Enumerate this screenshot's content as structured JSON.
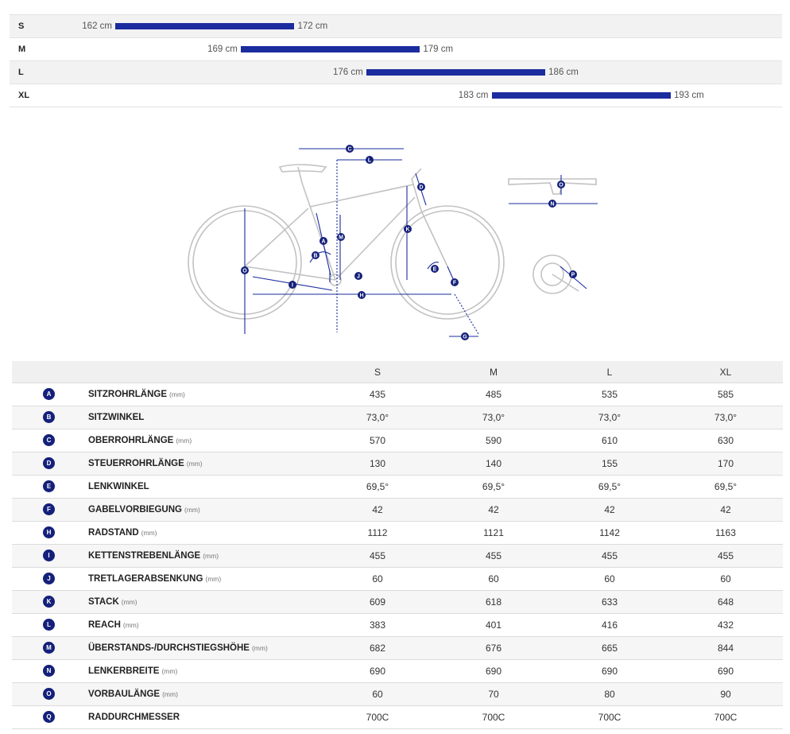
{
  "size_ranges": [
    {
      "size": "S",
      "min": "162 cm",
      "max": "172 cm",
      "min_cm": 162,
      "max_cm": 172
    },
    {
      "size": "M",
      "min": "169 cm",
      "max": "179 cm",
      "min_cm": 169,
      "max_cm": 179
    },
    {
      "size": "L",
      "min": "176 cm",
      "max": "186 cm",
      "min_cm": 176,
      "max_cm": 186
    },
    {
      "size": "XL",
      "min": "183 cm",
      "max": "193 cm",
      "min_cm": 183,
      "max_cm": 193
    }
  ],
  "diagram_labels": [
    "A",
    "B",
    "C",
    "D",
    "E",
    "F",
    "G",
    "H",
    "I",
    "J",
    "K",
    "L",
    "M",
    "N",
    "O",
    "P"
  ],
  "colors": {
    "accent": "#1a2c9e",
    "badge": "#14207a",
    "frame": "#bdbdbd"
  },
  "table": {
    "size_headers": [
      "S",
      "M",
      "L",
      "XL"
    ],
    "rows": [
      {
        "badge": "A",
        "name": "SITZROHRLÄNGE",
        "unit": "(mm)",
        "values": [
          "435",
          "485",
          "535",
          "585"
        ]
      },
      {
        "badge": "B",
        "name": "SITZWINKEL",
        "unit": "",
        "values": [
          "73,0°",
          "73,0°",
          "73,0°",
          "73,0°"
        ]
      },
      {
        "badge": "C",
        "name": "OBERROHRLÄNGE",
        "unit": "(mm)",
        "values": [
          "570",
          "590",
          "610",
          "630"
        ]
      },
      {
        "badge": "D",
        "name": "STEUERROHRLÄNGE",
        "unit": "(mm)",
        "values": [
          "130",
          "140",
          "155",
          "170"
        ]
      },
      {
        "badge": "E",
        "name": "LENKWINKEL",
        "unit": "",
        "values": [
          "69,5°",
          "69,5°",
          "69,5°",
          "69,5°"
        ]
      },
      {
        "badge": "F",
        "name": "GABELVORBIEGUNG",
        "unit": "(mm)",
        "values": [
          "42",
          "42",
          "42",
          "42"
        ]
      },
      {
        "badge": "H",
        "name": "RADSTAND",
        "unit": "(mm)",
        "values": [
          "1112",
          "1121",
          "1142",
          "1163"
        ]
      },
      {
        "badge": "I",
        "name": "KETTENSTREBENLÄNGE",
        "unit": "(mm)",
        "values": [
          "455",
          "455",
          "455",
          "455"
        ]
      },
      {
        "badge": "J",
        "name": "TRETLAGERABSENKUNG",
        "unit": "(mm)",
        "values": [
          "60",
          "60",
          "60",
          "60"
        ]
      },
      {
        "badge": "K",
        "name": "STACK",
        "unit": "(mm)",
        "values": [
          "609",
          "618",
          "633",
          "648"
        ]
      },
      {
        "badge": "L",
        "name": "REACH",
        "unit": "(mm)",
        "values": [
          "383",
          "401",
          "416",
          "432"
        ]
      },
      {
        "badge": "M",
        "name": "ÜBERSTANDS-/DURCHSTIEGSHÖHE",
        "unit": "(mm)",
        "values": [
          "682",
          "676",
          "665",
          "844"
        ]
      },
      {
        "badge": "N",
        "name": "LENKERBREITE",
        "unit": "(mm)",
        "values": [
          "690",
          "690",
          "690",
          "690"
        ]
      },
      {
        "badge": "O",
        "name": "VORBAULÄNGE",
        "unit": "(mm)",
        "values": [
          "60",
          "70",
          "80",
          "90"
        ]
      },
      {
        "badge": "Q",
        "name": "RADDURCHMESSER",
        "unit": "",
        "values": [
          "700C",
          "700C",
          "700C",
          "700C"
        ]
      }
    ]
  }
}
